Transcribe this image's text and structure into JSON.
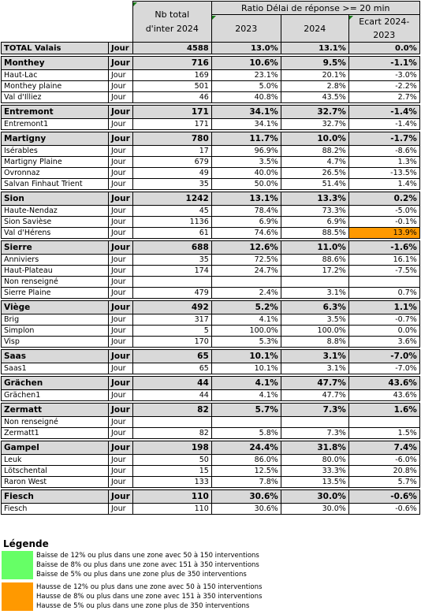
{
  "header": {
    "nb_total": "Nb total\nd'inter 2024",
    "ratio_title": "Ratio Délai de réponse >= 20 min",
    "col_2023": "2023",
    "col_2024": "2024",
    "col_ecart": "Ecart 2024-\n2023"
  },
  "total": {
    "name": "TOTAL Valais",
    "period": "Jour",
    "nb": "4588",
    "r2023": "13.0%",
    "r2024": "13.1%",
    "ecart": "0.0%"
  },
  "groups": [
    {
      "name": "Monthey",
      "period": "Jour",
      "nb": "716",
      "r2023": "10.6%",
      "r2024": "9.5%",
      "ecart": "-1.1%",
      "rows": [
        {
          "name": "Haut-Lac",
          "period": "Jour",
          "nb": "169",
          "r2023": "23.1%",
          "r2024": "20.1%",
          "ecart": "-3.0%"
        },
        {
          "name": "Monthey plaine",
          "period": "Jour",
          "nb": "501",
          "r2023": "5.0%",
          "r2024": "2.8%",
          "ecart": "-2.2%"
        },
        {
          "name": "Val d'Illiez",
          "period": "Jour",
          "nb": "46",
          "r2023": "40.8%",
          "r2024": "43.5%",
          "ecart": "2.7%"
        }
      ]
    },
    {
      "name": "Entremont",
      "period": "Jour",
      "nb": "171",
      "r2023": "34.1%",
      "r2024": "32.7%",
      "ecart": "-1.4%",
      "rows": [
        {
          "name": "Entremont1",
          "period": "Jour",
          "nb": "171",
          "r2023": "34.1%",
          "r2024": "32.7%",
          "ecart": "-1.4%"
        }
      ]
    },
    {
      "name": "Martigny",
      "period": "Jour",
      "nb": "780",
      "r2023": "11.7%",
      "r2024": "10.0%",
      "ecart": "-1.7%",
      "rows": [
        {
          "name": "Isérables",
          "period": "Jour",
          "nb": "17",
          "r2023": "96.9%",
          "r2024": "88.2%",
          "ecart": "-8.6%"
        },
        {
          "name": "Martigny Plaine",
          "period": "Jour",
          "nb": "679",
          "r2023": "3.5%",
          "r2024": "4.7%",
          "ecart": "1.3%"
        },
        {
          "name": "Ovronnaz",
          "period": "Jour",
          "nb": "49",
          "r2023": "40.0%",
          "r2024": "26.5%",
          "ecart": "-13.5%"
        },
        {
          "name": "Salvan Finhaut Trient",
          "period": "Jour",
          "nb": "35",
          "r2023": "50.0%",
          "r2024": "51.4%",
          "ecart": "1.4%"
        }
      ]
    },
    {
      "name": "Sion",
      "period": "Jour",
      "nb": "1242",
      "r2023": "13.1%",
      "r2024": "13.3%",
      "ecart": "0.2%",
      "rows": [
        {
          "name": "Haute-Nendaz",
          "period": "Jour",
          "nb": "45",
          "r2023": "78.4%",
          "r2024": "73.3%",
          "ecart": "-5.0%"
        },
        {
          "name": "Sion Savièse",
          "period": "Jour",
          "nb": "1136",
          "r2023": "6.9%",
          "r2024": "6.9%",
          "ecart": "-0.1%"
        },
        {
          "name": "Val d'Hérens",
          "period": "Jour",
          "nb": "61",
          "r2023": "74.6%",
          "r2024": "88.5%",
          "ecart": "13.9%",
          "highlight": "orange"
        }
      ]
    },
    {
      "name": "Sierre",
      "period": "Jour",
      "nb": "688",
      "r2023": "12.6%",
      "r2024": "11.0%",
      "ecart": "-1.6%",
      "rows": [
        {
          "name": "Anniviers",
          "period": "Jour",
          "nb": "35",
          "r2023": "72.5%",
          "r2024": "88.6%",
          "ecart": "16.1%"
        },
        {
          "name": "Haut-Plateau",
          "period": "Jour",
          "nb": "174",
          "r2023": "24.7%",
          "r2024": "17.2%",
          "ecart": "-7.5%"
        },
        {
          "name": "Non renseigné",
          "period": "Jour",
          "nb": "",
          "r2023": "",
          "r2024": "",
          "ecart": ""
        },
        {
          "name": "Sierre Plaine",
          "period": "Jour",
          "nb": "479",
          "r2023": "2.4%",
          "r2024": "3.1%",
          "ecart": "0.7%"
        }
      ]
    },
    {
      "name": "Viège",
      "period": "Jour",
      "nb": "492",
      "r2023": "5.2%",
      "r2024": "6.3%",
      "ecart": "1.1%",
      "rows": [
        {
          "name": "Brig",
          "period": "Jour",
          "nb": "317",
          "r2023": "4.1%",
          "r2024": "3.5%",
          "ecart": "-0.7%"
        },
        {
          "name": "Simplon",
          "period": "Jour",
          "nb": "5",
          "r2023": "100.0%",
          "r2024": "100.0%",
          "ecart": "0.0%"
        },
        {
          "name": "Visp",
          "period": "Jour",
          "nb": "170",
          "r2023": "5.3%",
          "r2024": "8.8%",
          "ecart": "3.6%"
        }
      ]
    },
    {
      "name": "Saas",
      "period": "Jour",
      "nb": "65",
      "r2023": "10.1%",
      "r2024": "3.1%",
      "ecart": "-7.0%",
      "rows": [
        {
          "name": "Saas1",
          "period": "Jour",
          "nb": "65",
          "r2023": "10.1%",
          "r2024": "3.1%",
          "ecart": "-7.0%"
        }
      ]
    },
    {
      "name": "Grächen",
      "period": "Jour",
      "nb": "44",
      "r2023": "4.1%",
      "r2024": "47.7%",
      "ecart": "43.6%",
      "rows": [
        {
          "name": "Grächen1",
          "period": "Jour",
          "nb": "44",
          "r2023": "4.1%",
          "r2024": "47.7%",
          "ecart": "43.6%"
        }
      ]
    },
    {
      "name": "Zermatt",
      "period": "Jour",
      "nb": "82",
      "r2023": "5.7%",
      "r2024": "7.3%",
      "ecart": "1.6%",
      "rows": [
        {
          "name": "Non renseigné",
          "period": "Jour",
          "nb": "",
          "r2023": "",
          "r2024": "",
          "ecart": ""
        },
        {
          "name": "Zermatt1",
          "period": "Jour",
          "nb": "82",
          "r2023": "5.8%",
          "r2024": "7.3%",
          "ecart": "1.5%"
        }
      ]
    },
    {
      "name": "Gampel",
      "period": "Jour",
      "nb": "198",
      "r2023": "24.4%",
      "r2024": "31.8%",
      "ecart": "7.4%",
      "rows": [
        {
          "name": "Leuk",
          "period": "Jour",
          "nb": "50",
          "r2023": "86.0%",
          "r2024": "80.0%",
          "ecart": "-6.0%"
        },
        {
          "name": "Lötschental",
          "period": "Jour",
          "nb": "15",
          "r2023": "12.5%",
          "r2024": "33.3%",
          "ecart": "20.8%"
        },
        {
          "name": "Raron West",
          "period": "Jour",
          "nb": "133",
          "r2023": "7.8%",
          "r2024": "13.5%",
          "ecart": "5.7%"
        }
      ]
    },
    {
      "name": "Fiesch",
      "period": "Jour",
      "nb": "110",
      "r2023": "30.6%",
      "r2024": "30.0%",
      "ecart": "-0.6%",
      "rows": [
        {
          "name": "Fiesch",
          "period": "Jour",
          "nb": "110",
          "r2023": "30.6%",
          "r2024": "30.0%",
          "ecart": "-0.6%"
        }
      ]
    }
  ],
  "legend": {
    "title": "Légende",
    "green_color": "#66ff66",
    "orange_color": "#ff9900",
    "green_lines": [
      "Baisse de 12% ou plus dans une zone avec 50 à 150 interventions",
      "Baisse de 8% ou plus dans une zone avec 151 à 350 interventions",
      "Baisse de 5% ou plus dans une zone plus de 350 interventions"
    ],
    "orange_lines": [
      "Hausse de 12% ou plus dans une zone avec 50 à 150 interventions",
      "Hausse de 8% ou plus dans une zone avec 151 à 350 interventions",
      "Hausse de 5% ou plus dans une zone plus de 350 interventions"
    ]
  }
}
